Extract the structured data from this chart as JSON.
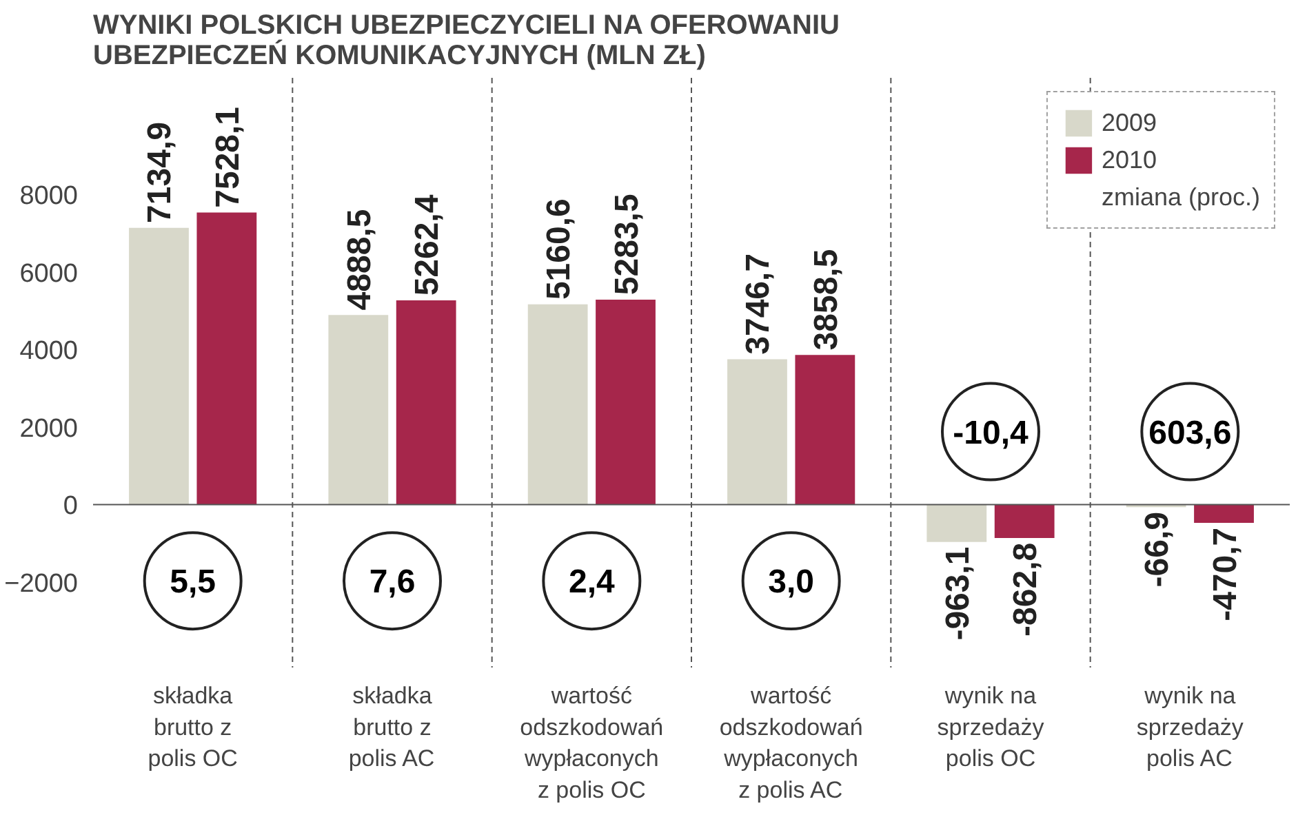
{
  "chart_data": {
    "type": "bar",
    "title": "WYNIKI POLSKICH UBEZPIECZYCIELI NA OFEROWANIU UBEZPIECZEŃ KOMUNIKACYJNYCH (MLN ZŁ)",
    "categories": [
      "składka brutto z polis OC",
      "składka brutto z polis AC",
      "wartość odszkodowań wypłaconych z polis OC",
      "wartość odszkodowań wypłaconych z polis AC",
      "wynik na sprzedaży polis OC",
      "wynik na sprzedaży polis AC"
    ],
    "series": [
      {
        "name": "2009",
        "color": "#d8d8ca",
        "values": [
          7134.9,
          4888.5,
          5160.6,
          3746.7,
          -963.1,
          -66.9
        ],
        "value_labels": [
          "7134,9",
          "4888,5",
          "5160,6",
          "3746,7",
          "-963,1",
          "-66,9"
        ]
      },
      {
        "name": "2010",
        "color": "#a6264b",
        "values": [
          7528.1,
          5262.4,
          5283.5,
          3858.5,
          -862.8,
          -470.7
        ],
        "value_labels": [
          "7528,1",
          "5262,4",
          "5283,5",
          "3858,5",
          "-862,8",
          "-470,7"
        ]
      }
    ],
    "ylim": [
      -4200,
      11000
    ],
    "yticks": [
      -2000,
      0,
      2000,
      4000,
      6000,
      8000
    ],
    "grid": false,
    "legend": "top right",
    "annotations": [
      "5,5",
      "7,6",
      "2,4",
      "3,0",
      "-10,4",
      "603,6",
      "zmiana (proc.)"
    ]
  }
}
